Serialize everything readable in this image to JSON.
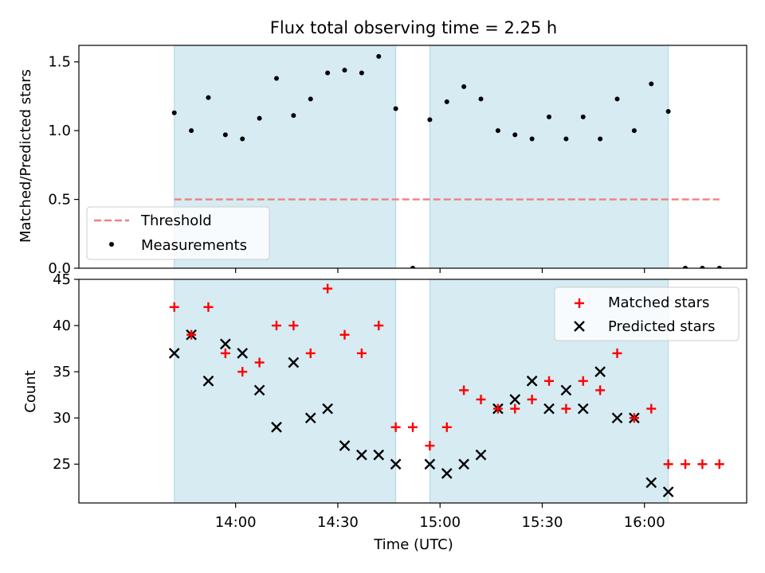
{
  "chart_data": [
    {
      "panel": "top",
      "type": "scatter",
      "title": "Flux total observing time = 2.25 h",
      "ylabel": "Matched/Predicted stars",
      "ylim": [
        0,
        1.62
      ],
      "yticks": [
        0.0,
        0.5,
        1.0,
        1.5
      ],
      "ytick_labels": [
        "0.0",
        "0.5",
        "1.0",
        "1.5"
      ],
      "shaded_time_ranges": [
        [
          "13:42",
          "14:47"
        ],
        [
          "14:57",
          "16:07"
        ]
      ],
      "threshold": {
        "name": "Threshold",
        "value": 0.5,
        "from": "13:42",
        "to": "16:22",
        "color": "#f08080"
      },
      "measurements": {
        "name": "Measurements",
        "times": [
          "13:42",
          "13:47",
          "13:52",
          "13:57",
          "14:02",
          "14:07",
          "14:12",
          "14:17",
          "14:22",
          "14:27",
          "14:32",
          "14:37",
          "14:42",
          "14:47",
          "14:52",
          "14:57",
          "15:02",
          "15:07",
          "15:12",
          "15:17",
          "15:22",
          "15:27",
          "15:32",
          "15:37",
          "15:42",
          "15:47",
          "15:52",
          "15:57",
          "16:02",
          "16:07",
          "16:12",
          "16:17",
          "16:22"
        ],
        "values": [
          1.13,
          1.0,
          1.24,
          0.97,
          0.94,
          1.09,
          1.38,
          1.11,
          1.23,
          1.42,
          1.44,
          1.42,
          1.54,
          1.16,
          0.0,
          1.08,
          1.21,
          1.32,
          1.23,
          1.0,
          0.97,
          0.94,
          1.1,
          0.94,
          1.1,
          0.94,
          1.23,
          1.0,
          1.34,
          1.14,
          0.0,
          0.0,
          0.0
        ]
      },
      "legend": {
        "position": "lower-left",
        "entries": [
          "Threshold",
          "Measurements"
        ]
      }
    },
    {
      "panel": "bottom",
      "type": "scatter",
      "xlabel": "Time (UTC)",
      "ylabel": "Count",
      "ylim": [
        20.8,
        45
      ],
      "yticks": [
        25,
        30,
        35,
        40,
        45
      ],
      "xticks": [
        "14:00",
        "14:30",
        "15:00",
        "15:30",
        "16:00"
      ],
      "shaded_time_ranges": [
        [
          "13:42",
          "14:47"
        ],
        [
          "14:57",
          "16:07"
        ]
      ],
      "series": [
        {
          "name": "Matched stars",
          "marker": "plus",
          "color": "#ff0000",
          "times": [
            "13:42",
            "13:47",
            "13:52",
            "13:57",
            "14:02",
            "14:07",
            "14:12",
            "14:17",
            "14:22",
            "14:27",
            "14:32",
            "14:37",
            "14:42",
            "14:47",
            "14:52",
            "14:57",
            "15:02",
            "15:07",
            "15:12",
            "15:17",
            "15:22",
            "15:27",
            "15:32",
            "15:37",
            "15:42",
            "15:47",
            "15:52",
            "15:57",
            "16:02",
            "16:07",
            "16:12",
            "16:17",
            "16:22"
          ],
          "values": [
            42,
            39,
            42,
            37,
            35,
            36,
            40,
            40,
            37,
            44,
            39,
            37,
            40,
            29,
            29,
            27,
            29,
            33,
            32,
            31,
            31,
            32,
            34,
            31,
            34,
            33,
            37,
            30,
            31,
            25,
            25,
            25,
            25
          ]
        },
        {
          "name": "Predicted stars",
          "marker": "x",
          "color": "#000000",
          "times": [
            "13:42",
            "13:47",
            "13:52",
            "13:57",
            "14:02",
            "14:07",
            "14:12",
            "14:17",
            "14:22",
            "14:27",
            "14:32",
            "14:37",
            "14:42",
            "14:47",
            "14:57",
            "15:02",
            "15:07",
            "15:12",
            "15:17",
            "15:22",
            "15:27",
            "15:32",
            "15:37",
            "15:42",
            "15:47",
            "15:52",
            "15:57",
            "16:02",
            "16:07"
          ],
          "values": [
            37,
            39,
            34,
            38,
            37,
            33,
            29,
            36,
            30,
            31,
            27,
            26,
            26,
            25,
            25,
            24,
            25,
            26,
            31,
            32,
            34,
            31,
            33,
            31,
            35,
            30,
            30,
            23,
            22
          ]
        }
      ],
      "legend": {
        "position": "top-right",
        "entries": [
          "Matched stars",
          "Predicted stars"
        ]
      }
    }
  ],
  "colors": {
    "shade": "#add8e6",
    "threshold": "#f08080",
    "matched": "#ff0000",
    "predicted": "#000000",
    "measurement": "#000000"
  }
}
